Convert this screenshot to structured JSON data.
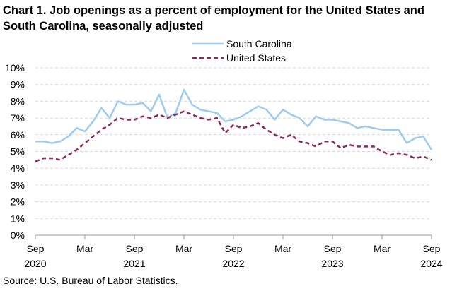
{
  "chart_data": {
    "type": "line",
    "title": "Chart 1. Job openings as a percent of employment for the United States and South Carolina, seasonally adjusted",
    "source": "Source: U.S. Bureau of Labor Statistics.",
    "ylim": [
      0,
      10
    ],
    "y_ticks": [
      "0%",
      "1%",
      "2%",
      "3%",
      "4%",
      "5%",
      "6%",
      "7%",
      "8%",
      "9%",
      "10%"
    ],
    "x_ticks": [
      {
        "index": 0,
        "month": "Sep",
        "year": "2020"
      },
      {
        "index": 6,
        "month": "Mar",
        "year": ""
      },
      {
        "index": 12,
        "month": "Sep",
        "year": "2021"
      },
      {
        "index": 18,
        "month": "Mar",
        "year": ""
      },
      {
        "index": 24,
        "month": "Sep",
        "year": "2022"
      },
      {
        "index": 30,
        "month": "Mar",
        "year": ""
      },
      {
        "index": 36,
        "month": "Sep",
        "year": "2023"
      },
      {
        "index": 42,
        "month": "Mar",
        "year": ""
      },
      {
        "index": 48,
        "month": "Sep",
        "year": "2024"
      }
    ],
    "grid": true,
    "legend_position": "top-right",
    "series": [
      {
        "name": "South Carolina",
        "color": "#9ecbf0",
        "style": "solid",
        "values": [
          5.6,
          5.6,
          5.5,
          5.6,
          5.9,
          6.4,
          6.2,
          6.8,
          7.6,
          7.0,
          8.0,
          7.8,
          7.8,
          7.9,
          7.4,
          8.4,
          7.0,
          7.3,
          8.7,
          7.8,
          7.5,
          7.4,
          7.3,
          6.8,
          6.9,
          7.1,
          7.4,
          7.7,
          7.5,
          6.9,
          7.5,
          7.2,
          7.0,
          6.5,
          7.1,
          6.9,
          6.9,
          6.8,
          6.7,
          6.4,
          6.5,
          6.4,
          6.3,
          6.3,
          6.3,
          5.5,
          5.8,
          5.9,
          5.1
        ]
      },
      {
        "name": "United States",
        "color": "#8b2a5f",
        "style": "dashed",
        "values": [
          4.4,
          4.6,
          4.6,
          4.5,
          4.8,
          5.1,
          5.5,
          5.9,
          6.3,
          6.6,
          7.0,
          6.9,
          6.9,
          7.1,
          7.0,
          7.2,
          7.0,
          7.2,
          7.4,
          7.2,
          7.0,
          6.9,
          7.0,
          6.1,
          6.6,
          6.4,
          6.5,
          6.7,
          6.3,
          6.0,
          5.8,
          6.0,
          5.6,
          5.5,
          5.3,
          5.6,
          5.6,
          5.2,
          5.4,
          5.3,
          5.3,
          5.3,
          5.0,
          4.8,
          4.9,
          4.8,
          4.6,
          4.7,
          4.5
        ]
      }
    ]
  }
}
